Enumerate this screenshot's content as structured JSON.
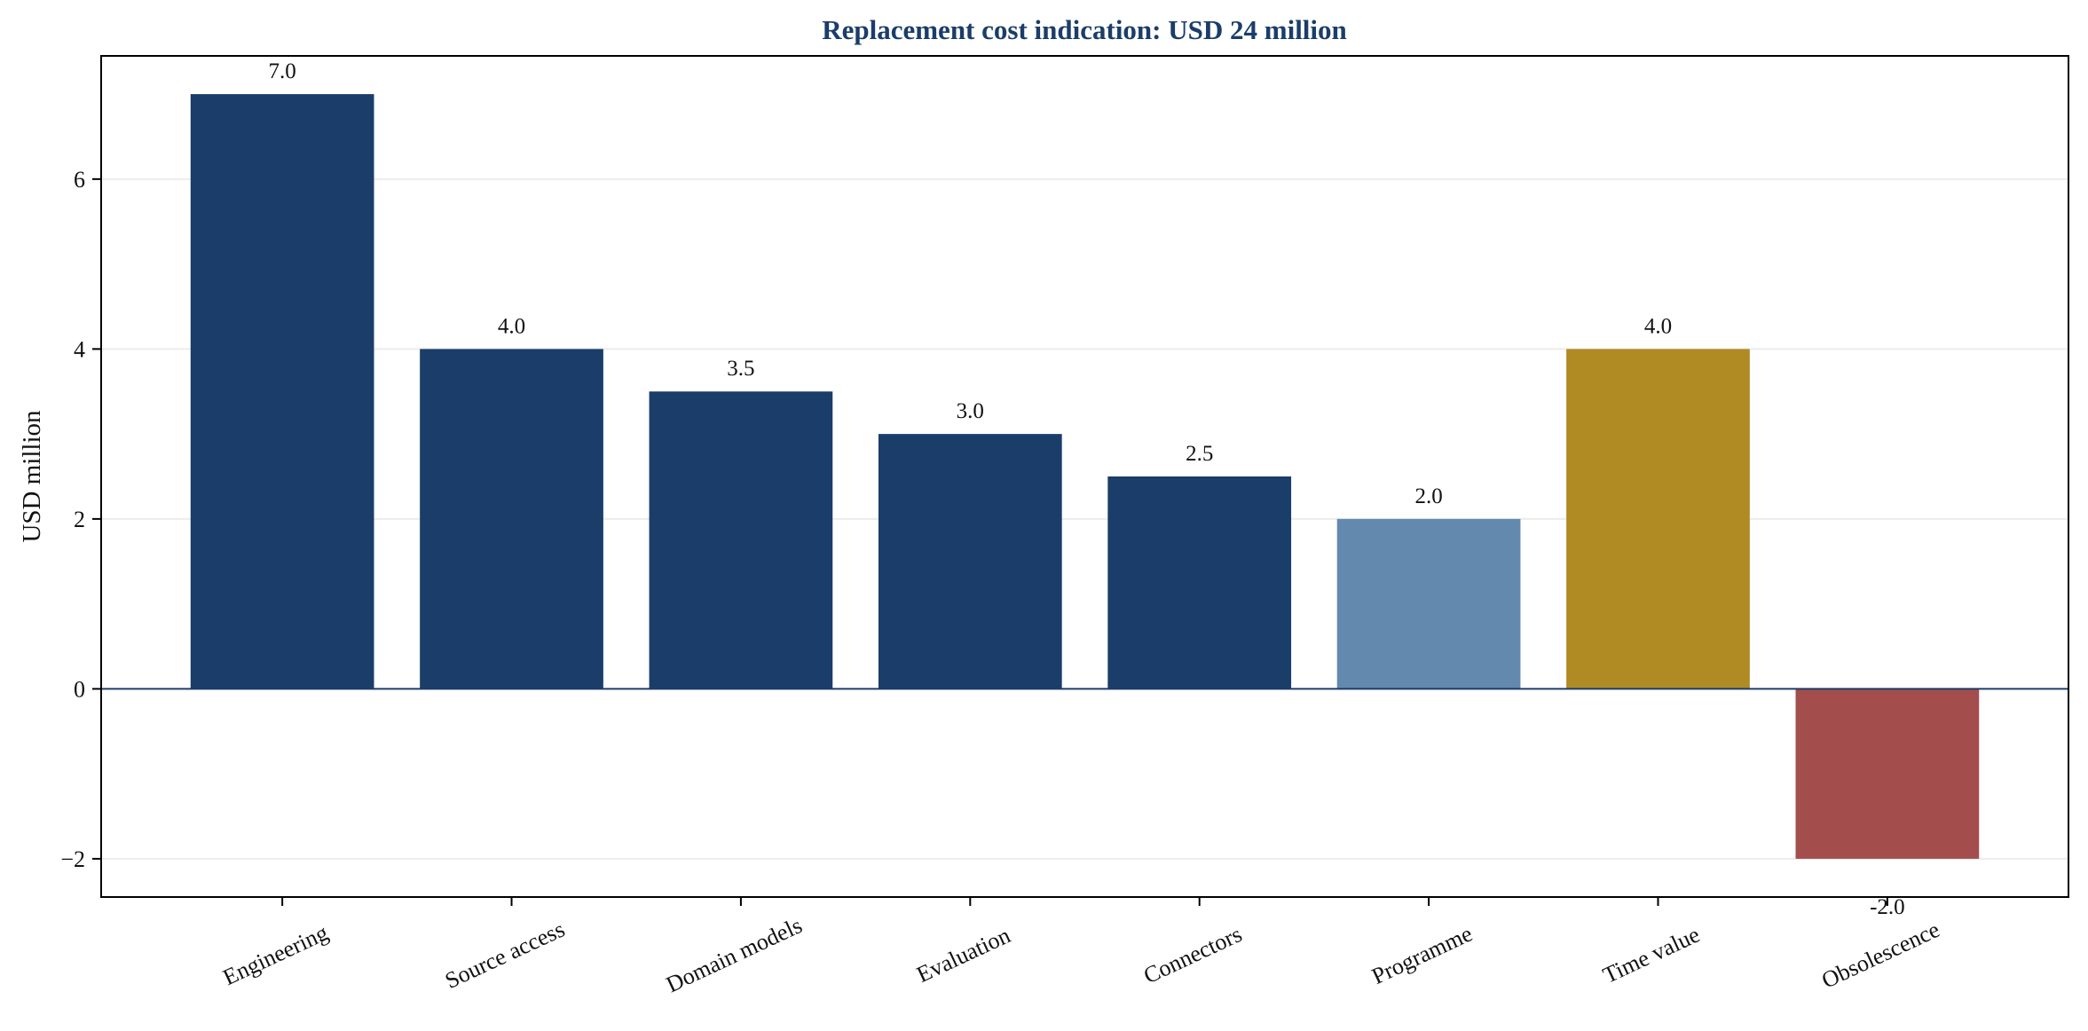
{
  "chart_data": {
    "type": "bar",
    "title": "Replacement cost indication: USD 24 million",
    "xlabel": "",
    "ylabel": "USD million",
    "categories": [
      "Engineering",
      "Source access",
      "Domain models",
      "Evaluation",
      "Connectors",
      "Programme",
      "Time value",
      "Obsolescence"
    ],
    "values": [
      7.0,
      4.0,
      3.5,
      3.0,
      2.5,
      2.0,
      4.0,
      -2.0
    ],
    "data_labels": [
      "7.0",
      "4.0",
      "3.5",
      "3.0",
      "2.5",
      "2.0",
      "4.0",
      "-2.0"
    ],
    "bar_colors": [
      "#1b3d69",
      "#1b3d69",
      "#1b3d69",
      "#1b3d69",
      "#1b3d69",
      "#6389ae",
      "#b08a22",
      "#a34d4d"
    ],
    "ylim": [
      -2.45,
      7.45
    ],
    "yticks": [
      -2,
      0,
      2,
      4,
      6
    ],
    "ytick_labels": [
      "−2",
      "0",
      "2",
      "4",
      "6"
    ],
    "grid": "horizontal",
    "colors": {
      "title": "#1b3d69",
      "zero_line": "#1b3d69",
      "grid": "#ececec",
      "frame": "#000000"
    }
  }
}
